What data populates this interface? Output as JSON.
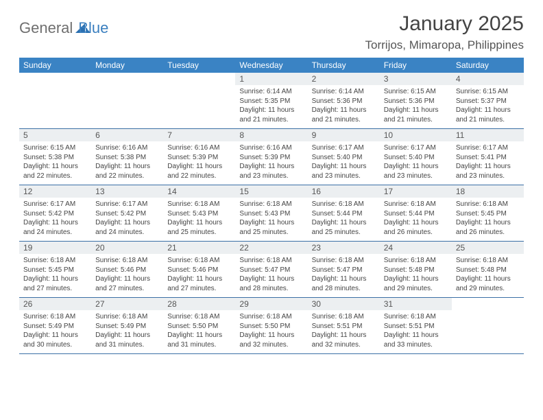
{
  "logo": {
    "word1": "General",
    "word2": "Blue"
  },
  "title": "January 2025",
  "location": "Torrijos, Mimaropa, Philippines",
  "colors": {
    "header_bg": "#3a83c4",
    "rule": "#3a6fa5",
    "daynum_bg": "#eceff1"
  },
  "weekdays": [
    "Sunday",
    "Monday",
    "Tuesday",
    "Wednesday",
    "Thursday",
    "Friday",
    "Saturday"
  ],
  "weeks": [
    [
      {
        "n": "",
        "sr": "",
        "ss": "",
        "dl": ""
      },
      {
        "n": "",
        "sr": "",
        "ss": "",
        "dl": ""
      },
      {
        "n": "",
        "sr": "",
        "ss": "",
        "dl": ""
      },
      {
        "n": "1",
        "sr": "Sunrise: 6:14 AM",
        "ss": "Sunset: 5:35 PM",
        "dl": "Daylight: 11 hours and 21 minutes."
      },
      {
        "n": "2",
        "sr": "Sunrise: 6:14 AM",
        "ss": "Sunset: 5:36 PM",
        "dl": "Daylight: 11 hours and 21 minutes."
      },
      {
        "n": "3",
        "sr": "Sunrise: 6:15 AM",
        "ss": "Sunset: 5:36 PM",
        "dl": "Daylight: 11 hours and 21 minutes."
      },
      {
        "n": "4",
        "sr": "Sunrise: 6:15 AM",
        "ss": "Sunset: 5:37 PM",
        "dl": "Daylight: 11 hours and 21 minutes."
      }
    ],
    [
      {
        "n": "5",
        "sr": "Sunrise: 6:15 AM",
        "ss": "Sunset: 5:38 PM",
        "dl": "Daylight: 11 hours and 22 minutes."
      },
      {
        "n": "6",
        "sr": "Sunrise: 6:16 AM",
        "ss": "Sunset: 5:38 PM",
        "dl": "Daylight: 11 hours and 22 minutes."
      },
      {
        "n": "7",
        "sr": "Sunrise: 6:16 AM",
        "ss": "Sunset: 5:39 PM",
        "dl": "Daylight: 11 hours and 22 minutes."
      },
      {
        "n": "8",
        "sr": "Sunrise: 6:16 AM",
        "ss": "Sunset: 5:39 PM",
        "dl": "Daylight: 11 hours and 23 minutes."
      },
      {
        "n": "9",
        "sr": "Sunrise: 6:17 AM",
        "ss": "Sunset: 5:40 PM",
        "dl": "Daylight: 11 hours and 23 minutes."
      },
      {
        "n": "10",
        "sr": "Sunrise: 6:17 AM",
        "ss": "Sunset: 5:40 PM",
        "dl": "Daylight: 11 hours and 23 minutes."
      },
      {
        "n": "11",
        "sr": "Sunrise: 6:17 AM",
        "ss": "Sunset: 5:41 PM",
        "dl": "Daylight: 11 hours and 23 minutes."
      }
    ],
    [
      {
        "n": "12",
        "sr": "Sunrise: 6:17 AM",
        "ss": "Sunset: 5:42 PM",
        "dl": "Daylight: 11 hours and 24 minutes."
      },
      {
        "n": "13",
        "sr": "Sunrise: 6:17 AM",
        "ss": "Sunset: 5:42 PM",
        "dl": "Daylight: 11 hours and 24 minutes."
      },
      {
        "n": "14",
        "sr": "Sunrise: 6:18 AM",
        "ss": "Sunset: 5:43 PM",
        "dl": "Daylight: 11 hours and 25 minutes."
      },
      {
        "n": "15",
        "sr": "Sunrise: 6:18 AM",
        "ss": "Sunset: 5:43 PM",
        "dl": "Daylight: 11 hours and 25 minutes."
      },
      {
        "n": "16",
        "sr": "Sunrise: 6:18 AM",
        "ss": "Sunset: 5:44 PM",
        "dl": "Daylight: 11 hours and 25 minutes."
      },
      {
        "n": "17",
        "sr": "Sunrise: 6:18 AM",
        "ss": "Sunset: 5:44 PM",
        "dl": "Daylight: 11 hours and 26 minutes."
      },
      {
        "n": "18",
        "sr": "Sunrise: 6:18 AM",
        "ss": "Sunset: 5:45 PM",
        "dl": "Daylight: 11 hours and 26 minutes."
      }
    ],
    [
      {
        "n": "19",
        "sr": "Sunrise: 6:18 AM",
        "ss": "Sunset: 5:45 PM",
        "dl": "Daylight: 11 hours and 27 minutes."
      },
      {
        "n": "20",
        "sr": "Sunrise: 6:18 AM",
        "ss": "Sunset: 5:46 PM",
        "dl": "Daylight: 11 hours and 27 minutes."
      },
      {
        "n": "21",
        "sr": "Sunrise: 6:18 AM",
        "ss": "Sunset: 5:46 PM",
        "dl": "Daylight: 11 hours and 27 minutes."
      },
      {
        "n": "22",
        "sr": "Sunrise: 6:18 AM",
        "ss": "Sunset: 5:47 PM",
        "dl": "Daylight: 11 hours and 28 minutes."
      },
      {
        "n": "23",
        "sr": "Sunrise: 6:18 AM",
        "ss": "Sunset: 5:47 PM",
        "dl": "Daylight: 11 hours and 28 minutes."
      },
      {
        "n": "24",
        "sr": "Sunrise: 6:18 AM",
        "ss": "Sunset: 5:48 PM",
        "dl": "Daylight: 11 hours and 29 minutes."
      },
      {
        "n": "25",
        "sr": "Sunrise: 6:18 AM",
        "ss": "Sunset: 5:48 PM",
        "dl": "Daylight: 11 hours and 29 minutes."
      }
    ],
    [
      {
        "n": "26",
        "sr": "Sunrise: 6:18 AM",
        "ss": "Sunset: 5:49 PM",
        "dl": "Daylight: 11 hours and 30 minutes."
      },
      {
        "n": "27",
        "sr": "Sunrise: 6:18 AM",
        "ss": "Sunset: 5:49 PM",
        "dl": "Daylight: 11 hours and 31 minutes."
      },
      {
        "n": "28",
        "sr": "Sunrise: 6:18 AM",
        "ss": "Sunset: 5:50 PM",
        "dl": "Daylight: 11 hours and 31 minutes."
      },
      {
        "n": "29",
        "sr": "Sunrise: 6:18 AM",
        "ss": "Sunset: 5:50 PM",
        "dl": "Daylight: 11 hours and 32 minutes."
      },
      {
        "n": "30",
        "sr": "Sunrise: 6:18 AM",
        "ss": "Sunset: 5:51 PM",
        "dl": "Daylight: 11 hours and 32 minutes."
      },
      {
        "n": "31",
        "sr": "Sunrise: 6:18 AM",
        "ss": "Sunset: 5:51 PM",
        "dl": "Daylight: 11 hours and 33 minutes."
      },
      {
        "n": "",
        "sr": "",
        "ss": "",
        "dl": ""
      }
    ]
  ]
}
